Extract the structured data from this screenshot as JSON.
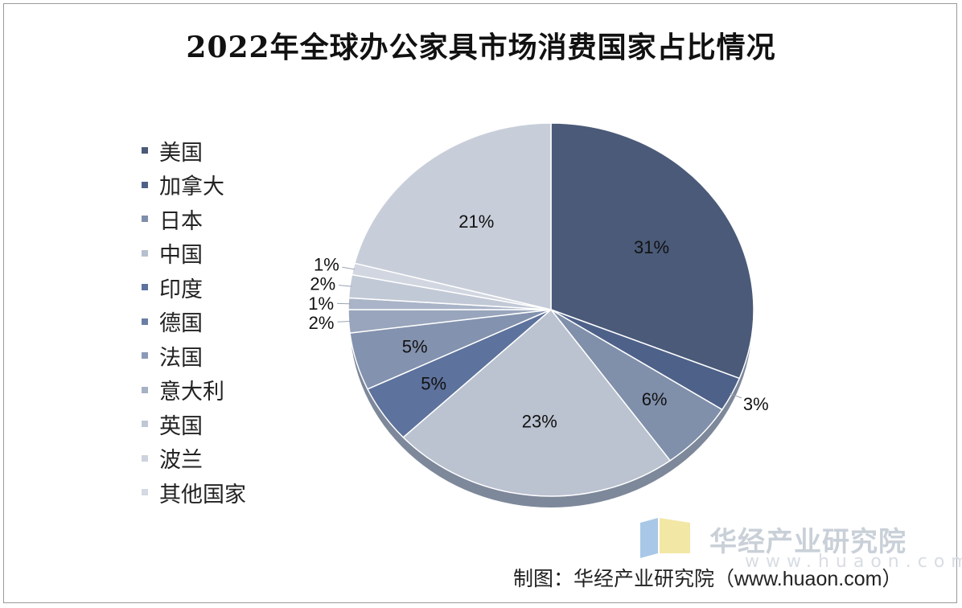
{
  "chart_data": {
    "type": "pie",
    "title": "2022年全球办公家具市场消费国家占比情况",
    "categories": [
      "美国",
      "加拿大",
      "日本",
      "中国",
      "印度",
      "德国",
      "法国",
      "意大利",
      "英国",
      "波兰",
      "其他国家"
    ],
    "values": [
      31,
      3,
      6,
      23,
      5,
      5,
      2,
      1,
      2,
      1,
      21
    ],
    "data_labels": [
      "31%",
      "3%",
      "6%",
      "23%",
      "5%",
      "5%",
      "2%",
      "1%",
      "2%",
      "1%",
      "21%"
    ],
    "colors": [
      "#4a5a78",
      "#4e6189",
      "#8090ab",
      "#bbc2d0",
      "#5d729c",
      "#8392ae",
      "#98a5bc",
      "#aab4c8",
      "#c2c9d6",
      "#d1d6e0",
      "#c8ced9"
    ],
    "legend_marker_colors": [
      "#4a5a78",
      "#4e6189",
      "#7f8fab",
      "#b7c0cf",
      "#5d729c",
      "#6a7ea5",
      "#8a99b6",
      "#a6b1c6",
      "#c0c7d5",
      "#cdd3dd",
      "#d4d9e2"
    ],
    "legend_position": "left"
  },
  "source": "制图：华经产业研究院（www.huaon.com）",
  "watermark": {
    "text": "华经产业研究院",
    "url": "www.huaon.com"
  }
}
